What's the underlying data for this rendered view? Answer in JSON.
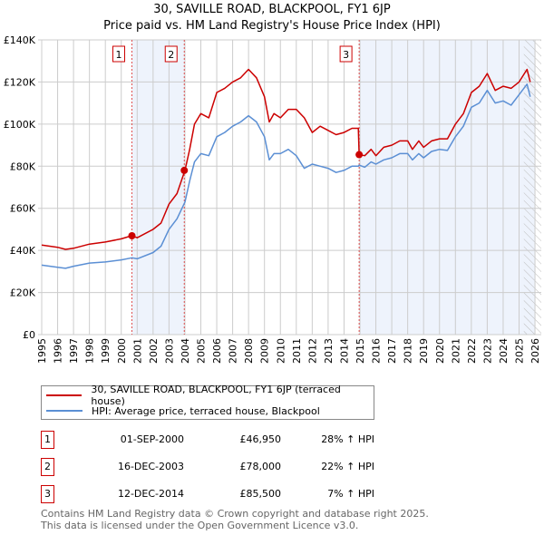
{
  "chart_data": {
    "type": "line",
    "title": "30, SAVILLE ROAD, BLACKPOOL, FY1 6JP",
    "subtitle": "Price paid vs. HM Land Registry's House Price Index (HPI)",
    "xlabel": "",
    "ylabel": "",
    "xlim": [
      1995,
      2026
    ],
    "ylim": [
      0,
      140000
    ],
    "grid": true,
    "x_ticks": [
      "1995",
      "1996",
      "1997",
      "1998",
      "1999",
      "2000",
      "2001",
      "2002",
      "2003",
      "2004",
      "2005",
      "2006",
      "2007",
      "2008",
      "2009",
      "2010",
      "2011",
      "2012",
      "2013",
      "2014",
      "2015",
      "2016",
      "2017",
      "2018",
      "2019",
      "2020",
      "2021",
      "2022",
      "2023",
      "2024",
      "2025",
      "2026"
    ],
    "y_ticks": [
      {
        "value": 0,
        "label": "£0"
      },
      {
        "value": 20000,
        "label": "£20K"
      },
      {
        "value": 40000,
        "label": "£40K"
      },
      {
        "value": 60000,
        "label": "£60K"
      },
      {
        "value": 80000,
        "label": "£80K"
      },
      {
        "value": 100000,
        "label": "£100K"
      },
      {
        "value": 120000,
        "label": "£120K"
      },
      {
        "value": 140000,
        "label": "£140K"
      }
    ],
    "x": [
      1995,
      1996,
      1996.5,
      1997,
      1998,
      1999,
      2000,
      2000.67,
      2001,
      2002,
      2002.5,
      2003,
      2003.5,
      2004,
      2004.3,
      2004.6,
      2005,
      2005.5,
      2006,
      2006.5,
      2007,
      2007.5,
      2008,
      2008.5,
      2009,
      2009.3,
      2009.6,
      2010,
      2010.5,
      2011,
      2011.5,
      2012,
      2012.5,
      2013,
      2013.5,
      2014,
      2014.5,
      2014.9,
      2014.95,
      2015.3,
      2015.7,
      2016,
      2016.5,
      2017,
      2017.5,
      2018,
      2018.3,
      2018.7,
      2019,
      2019.5,
      2020,
      2020.5,
      2021,
      2021.5,
      2022,
      2022.5,
      2023,
      2023.5,
      2024,
      2024.5,
      2025,
      2025.5,
      2025.7
    ],
    "series": [
      {
        "name": "30, SAVILLE ROAD, BLACKPOOL, FY1 6JP (terraced house)",
        "color": "#cc0000",
        "values_k": [
          42.5,
          41.5,
          40.5,
          41,
          43,
          44,
          45.5,
          47,
          46,
          50,
          53,
          62,
          67,
          78,
          88,
          100,
          105,
          103,
          115,
          117,
          120,
          122,
          126,
          122,
          113,
          101,
          105,
          103,
          107,
          107,
          103,
          96,
          99,
          97,
          95,
          96,
          98,
          98,
          85.5,
          85,
          88,
          85,
          89,
          90,
          92,
          92,
          88,
          92,
          89,
          92,
          93,
          93,
          100,
          105,
          115,
          118,
          124,
          116,
          118,
          117,
          120,
          126,
          120
        ]
      },
      {
        "name": "HPI: Average price, terraced house, Blackpool",
        "color": "#5b8fd4",
        "values_k": [
          33,
          32,
          31.5,
          32.5,
          34,
          34.5,
          35.5,
          36.5,
          36,
          39,
          42,
          50,
          55,
          63,
          73,
          82,
          86,
          85,
          94,
          96,
          99,
          101,
          104,
          101,
          94,
          83,
          86,
          86,
          88,
          85,
          79,
          81,
          80,
          79,
          77,
          78,
          80,
          80,
          80.5,
          79.5,
          82,
          81,
          83,
          84,
          86,
          86,
          83,
          86,
          84,
          87,
          88,
          87.5,
          94,
          99,
          108,
          110,
          116,
          110,
          111,
          109,
          114,
          119,
          113
        ]
      }
    ],
    "sales": [
      {
        "label": "1",
        "x": 2000.67,
        "value": 46950,
        "date": "01-SEP-2000",
        "price": "£46,950",
        "hpi": "28% ↑ HPI"
      },
      {
        "label": "2",
        "x": 2003.96,
        "value": 78000,
        "date": "16-DEC-2003",
        "price": "£78,000",
        "hpi": "22% ↑ HPI"
      },
      {
        "label": "3",
        "x": 2014.95,
        "value": 85500,
        "date": "12-DEC-2014",
        "price": "£85,500",
        "hpi": "7% ↑ HPI"
      }
    ],
    "shaded_ranges": [
      [
        2000.67,
        2003.96
      ],
      [
        2014.95,
        2026
      ]
    ],
    "forecast_hatch_start": 2025.3,
    "legend_position": "below"
  },
  "legend": {
    "property": "30, SAVILLE ROAD, BLACKPOOL, FY1 6JP (terraced house)",
    "hpi": "HPI: Average price, terraced house, Blackpool"
  },
  "footer": {
    "line1": "Contains HM Land Registry data © Crown copyright and database right 2025.",
    "line2": "This data is licensed under the Open Government Licence v3.0."
  }
}
